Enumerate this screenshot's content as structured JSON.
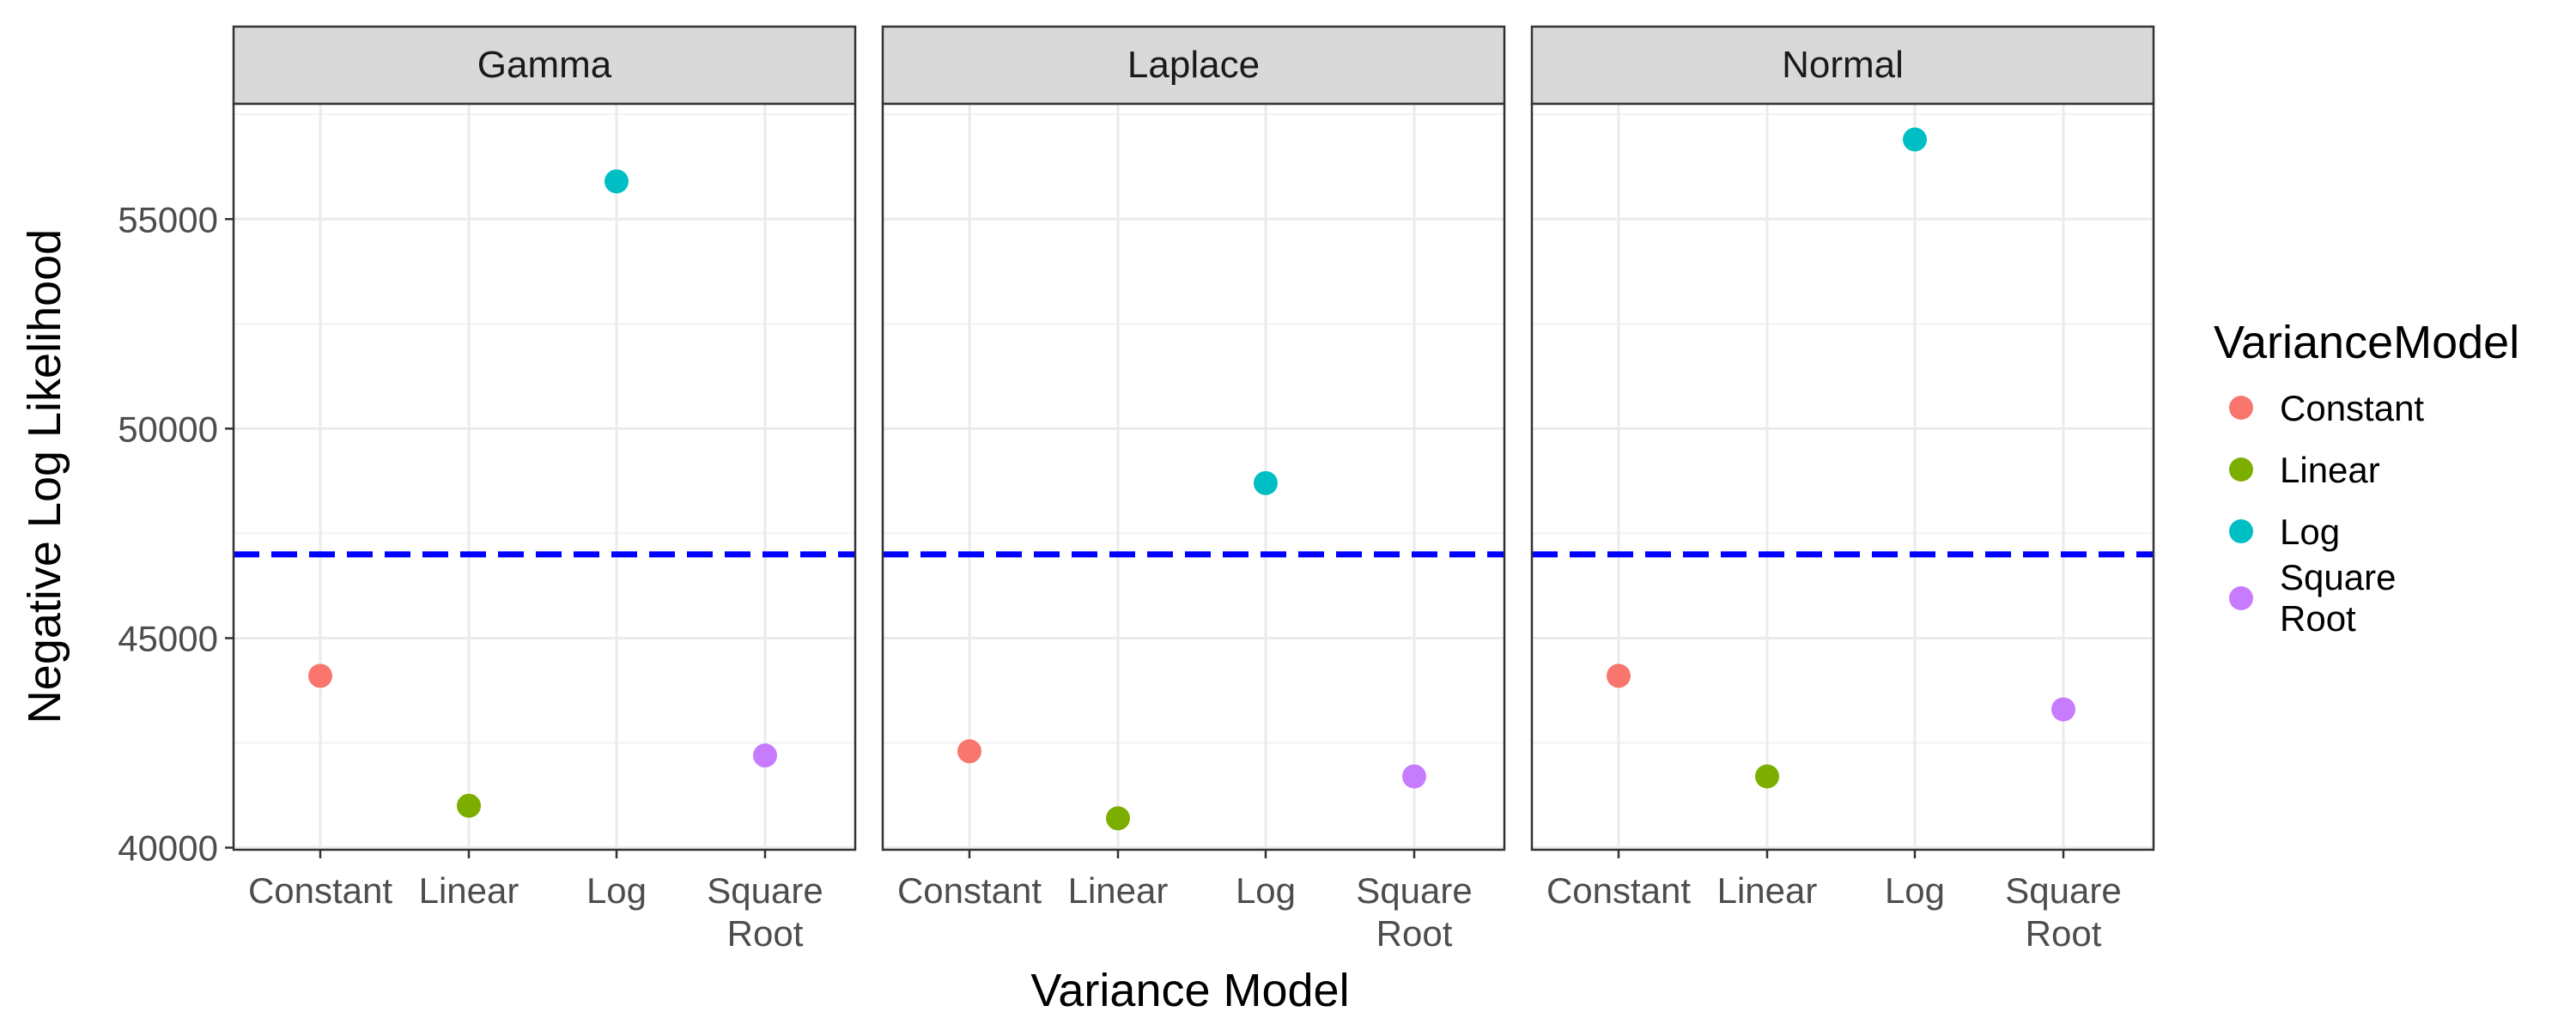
{
  "chart_data": {
    "type": "scatter",
    "facets": [
      "Gamma",
      "Laplace",
      "Normal"
    ],
    "categories": [
      "Constant",
      "Linear",
      "Log",
      "Square Root"
    ],
    "series": [
      {
        "name": "Constant",
        "color": "#F8766D",
        "values": [
          44100,
          42300,
          44100
        ]
      },
      {
        "name": "Linear",
        "color": "#7CAE00",
        "values": [
          41000,
          40700,
          41700
        ]
      },
      {
        "name": "Log",
        "color": "#00BFC4",
        "values": [
          55900,
          48700,
          56900
        ]
      },
      {
        "name": "Square Root",
        "color": "#C77CFF",
        "values": [
          42200,
          41700,
          43300
        ]
      }
    ],
    "reference_line": {
      "value": 47000,
      "color": "#0000FF",
      "style": "dashed"
    },
    "xlabel": "Variance Model",
    "ylabel": "Negative Log Likelihood",
    "ylim": [
      39950,
      57750
    ],
    "yticks": [
      40000,
      45000,
      50000,
      55000
    ],
    "legend": {
      "title": "VarianceModel",
      "position": "right"
    },
    "grid": true
  }
}
